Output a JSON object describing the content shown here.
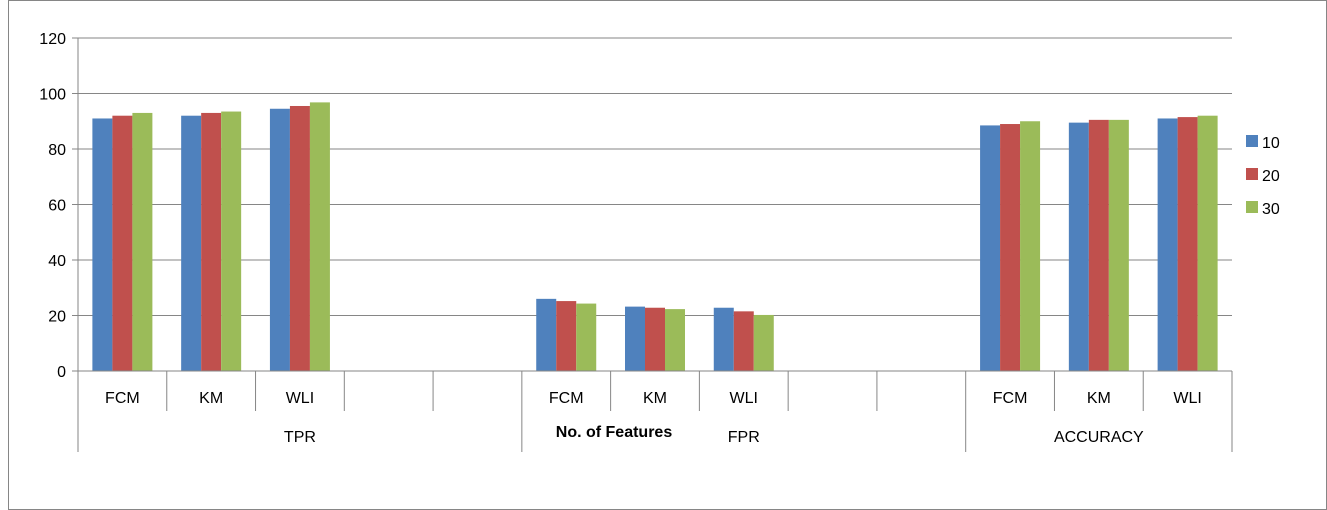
{
  "chart_data": {
    "type": "bar",
    "xlabel": "No. of Features",
    "ylabel": "",
    "ylim": [
      0,
      120
    ],
    "yticks": [
      0,
      20,
      40,
      60,
      80,
      100,
      120
    ],
    "grid": true,
    "legend_position": "right",
    "groups": [
      {
        "label": "TPR",
        "categories": [
          "FCM",
          "KM",
          "WLI",
          "",
          ""
        ]
      },
      {
        "label": "FPR",
        "categories": [
          "FCM",
          "KM",
          "WLI",
          "",
          ""
        ]
      },
      {
        "label": "ACCURACY",
        "categories": [
          "FCM",
          "KM",
          "WLI"
        ]
      }
    ],
    "series": [
      {
        "name": "10",
        "color": "#4F81BD",
        "values": [
          91,
          92,
          94.5,
          null,
          null,
          26,
          23.2,
          22.8,
          null,
          null,
          88.5,
          89.5,
          91
        ]
      },
      {
        "name": "20",
        "color": "#C0504D",
        "values": [
          92,
          93,
          95.5,
          null,
          null,
          25.2,
          22.8,
          21.5,
          null,
          null,
          89,
          90.5,
          91.5
        ]
      },
      {
        "name": "30",
        "color": "#9BBB59",
        "values": [
          93,
          93.5,
          96.8,
          null,
          null,
          24.3,
          22.3,
          20.2,
          null,
          null,
          90,
          90.5,
          92
        ]
      }
    ]
  }
}
